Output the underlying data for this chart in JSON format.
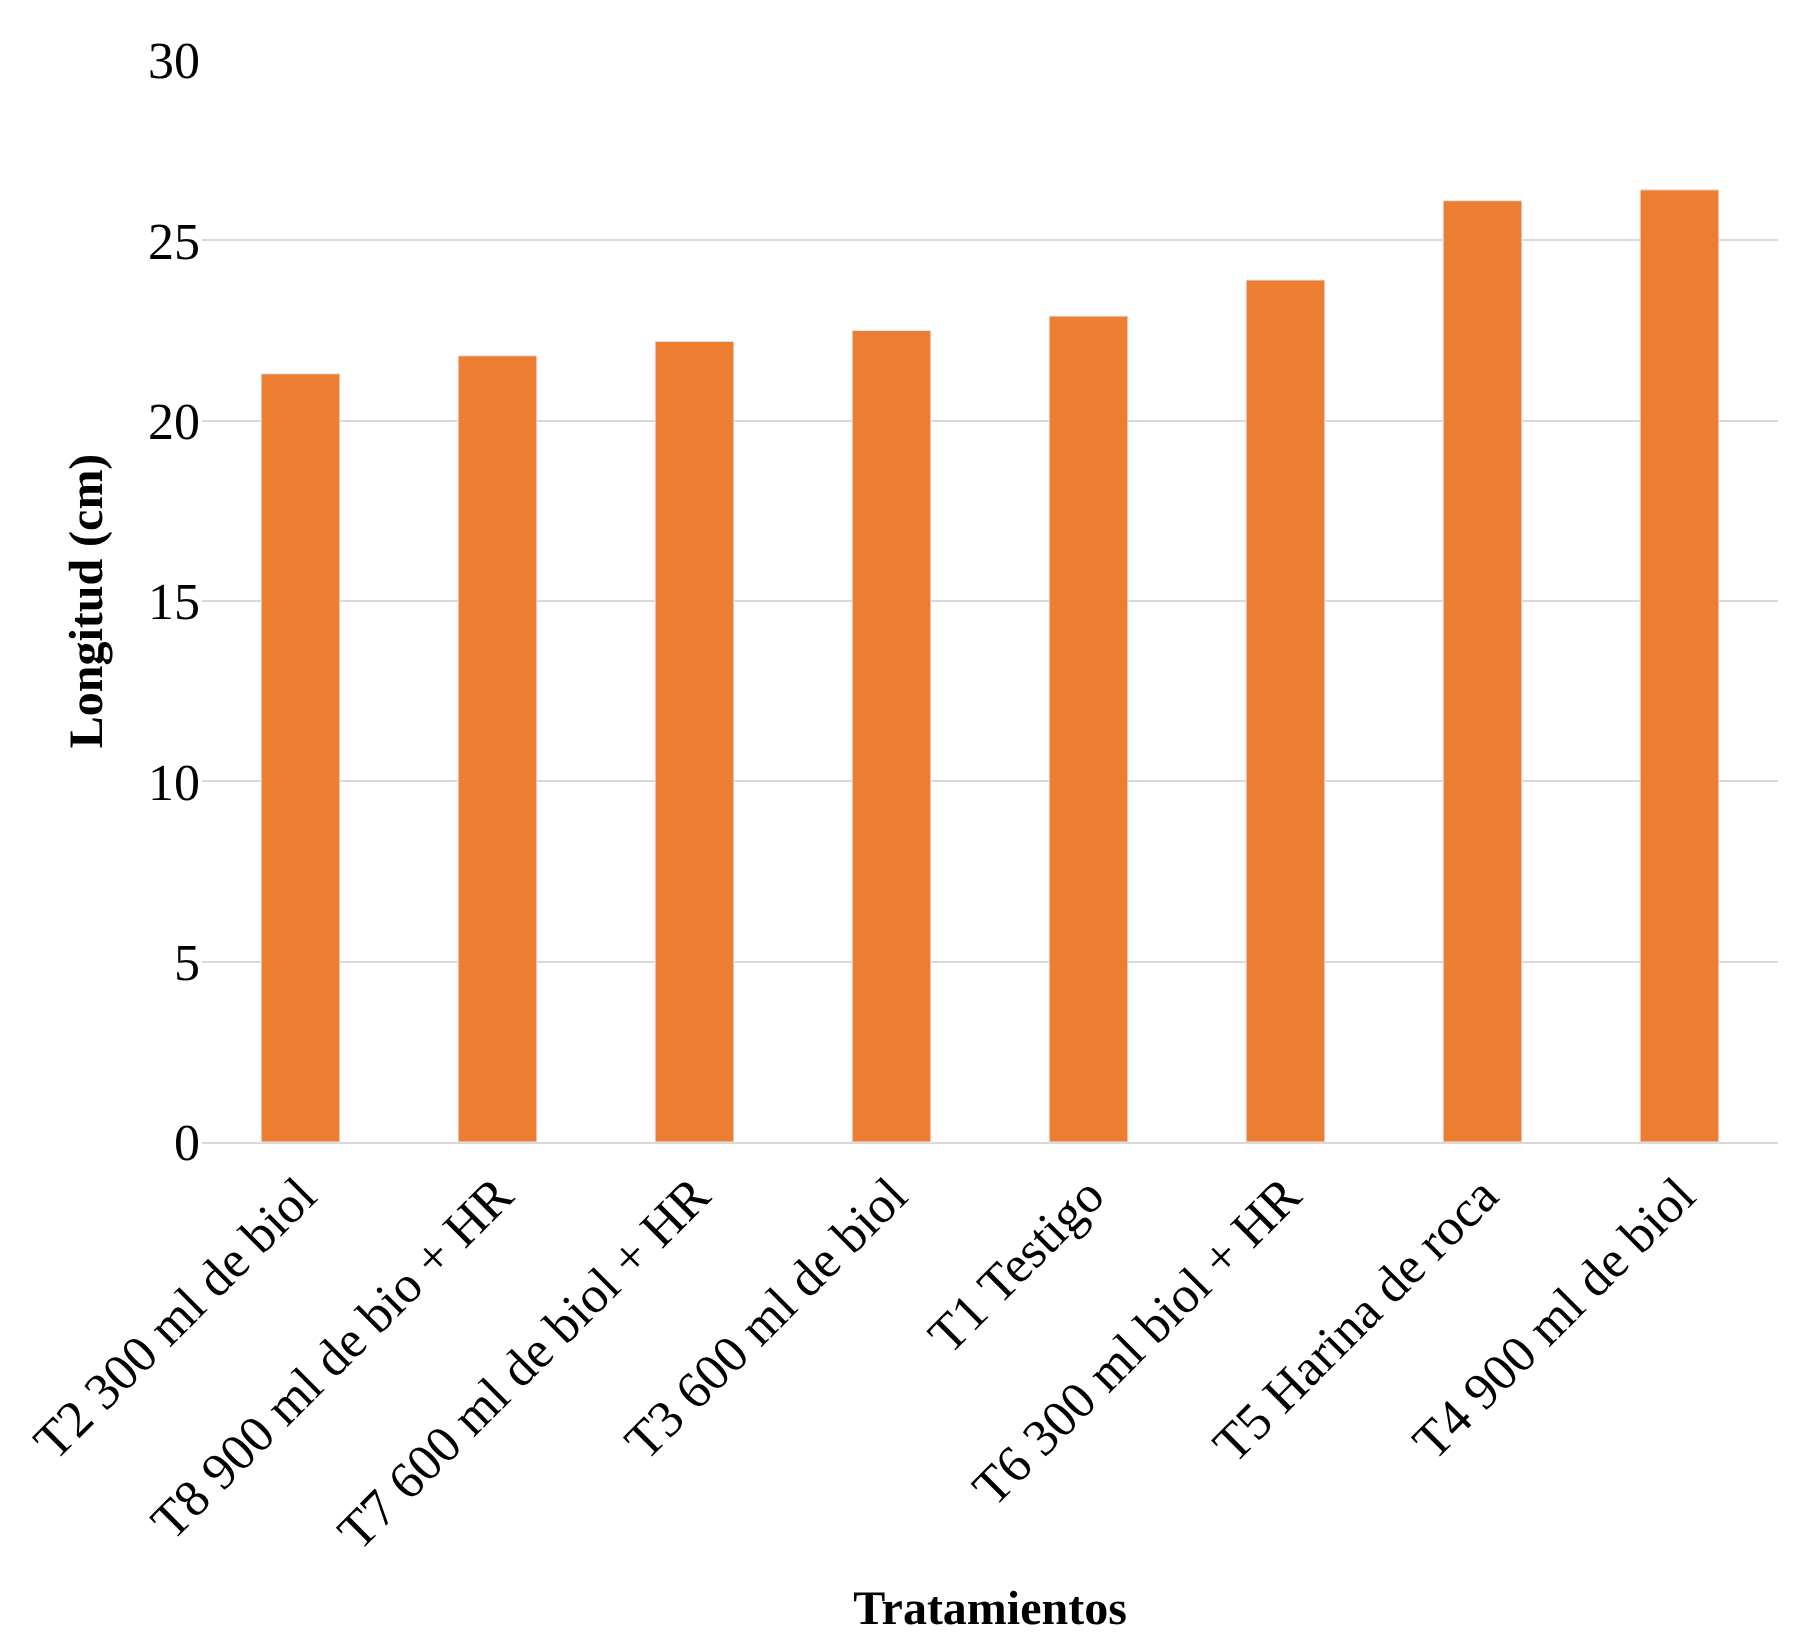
{
  "chart_data": {
    "type": "bar",
    "xlabel": "Tratamientos",
    "ylabel": "Longitud (cm)",
    "categories": [
      "T2 300 ml de biol",
      "T8 900 ml de bio + HR",
      "T7 600 ml de biol + HR",
      "T3 600 ml de biol",
      "T1 Testigo",
      "T6 300 ml biol + HR",
      "T5 Harina de roca",
      "T4 900 ml de biol"
    ],
    "values": [
      21.3,
      21.8,
      22.2,
      22.5,
      22.9,
      23.9,
      26.1,
      26.4
    ],
    "color": "#ed7d31",
    "ylim": [
      0,
      30
    ],
    "yticks": [
      0,
      5,
      10,
      15,
      20,
      25,
      30
    ],
    "grid": "y",
    "legend": false
  }
}
